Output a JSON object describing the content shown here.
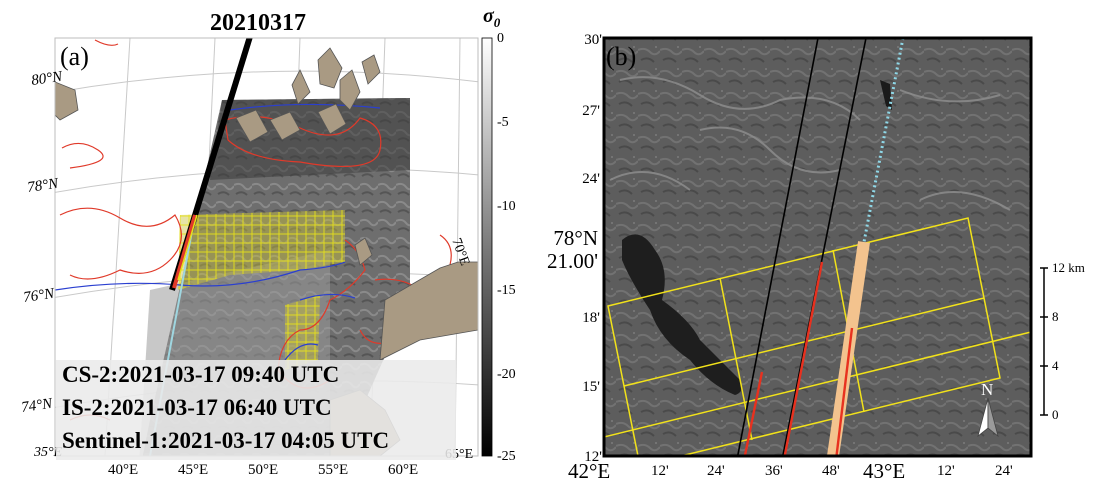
{
  "panel_a": {
    "label": "(a)",
    "date_title": "20210317",
    "colorbar": {
      "symbol": "σ",
      "subscript": "0",
      "ticks": [
        "0",
        "-5",
        "-10",
        "-15",
        "-20",
        "-25"
      ]
    },
    "lat_labels": [
      "80°N",
      "78°N",
      "76°N",
      "74°N"
    ],
    "lon_labels": [
      "40°E",
      "45°E",
      "50°E",
      "55°E",
      "60°E"
    ],
    "corner_labels": {
      "bottom_left": "35°E",
      "bottom_right": "65°E",
      "right": "70°E"
    },
    "info": [
      "CS-2:2021-03-17 09:40 UTC",
      "IS-2:2021-03-17 06:40 UTC",
      "Sentinel-1:2021-03-17 04:05 UTC"
    ],
    "colors": {
      "land": "#a99a83",
      "red_contour": "#e03a2a",
      "blue_contour": "#2a3fd0",
      "grid_yellow": "#e6e01a",
      "track": "#000000",
      "is2_track": "#9fd6e0"
    }
  },
  "panel_b": {
    "label": "(b)",
    "lat_labels": [
      "30'",
      "27'",
      "24'",
      "18'",
      "15'",
      "12'"
    ],
    "lat_main": {
      "line1": "78°N",
      "line2": "21.00'"
    },
    "lon_labels": [
      "42°E",
      "12'",
      "24'",
      "36'",
      "48'",
      "43°E",
      "12'",
      "24'"
    ],
    "scale": {
      "ticks": [
        "12 km",
        "8",
        "4",
        "0"
      ]
    },
    "north_label": "N",
    "colors": {
      "frame": "#000000",
      "grid_yellow": "#f2e21a",
      "red_track": "#e8311f",
      "is2_beam": "#f3c38e",
      "dotted": "#8fd8e8"
    }
  }
}
